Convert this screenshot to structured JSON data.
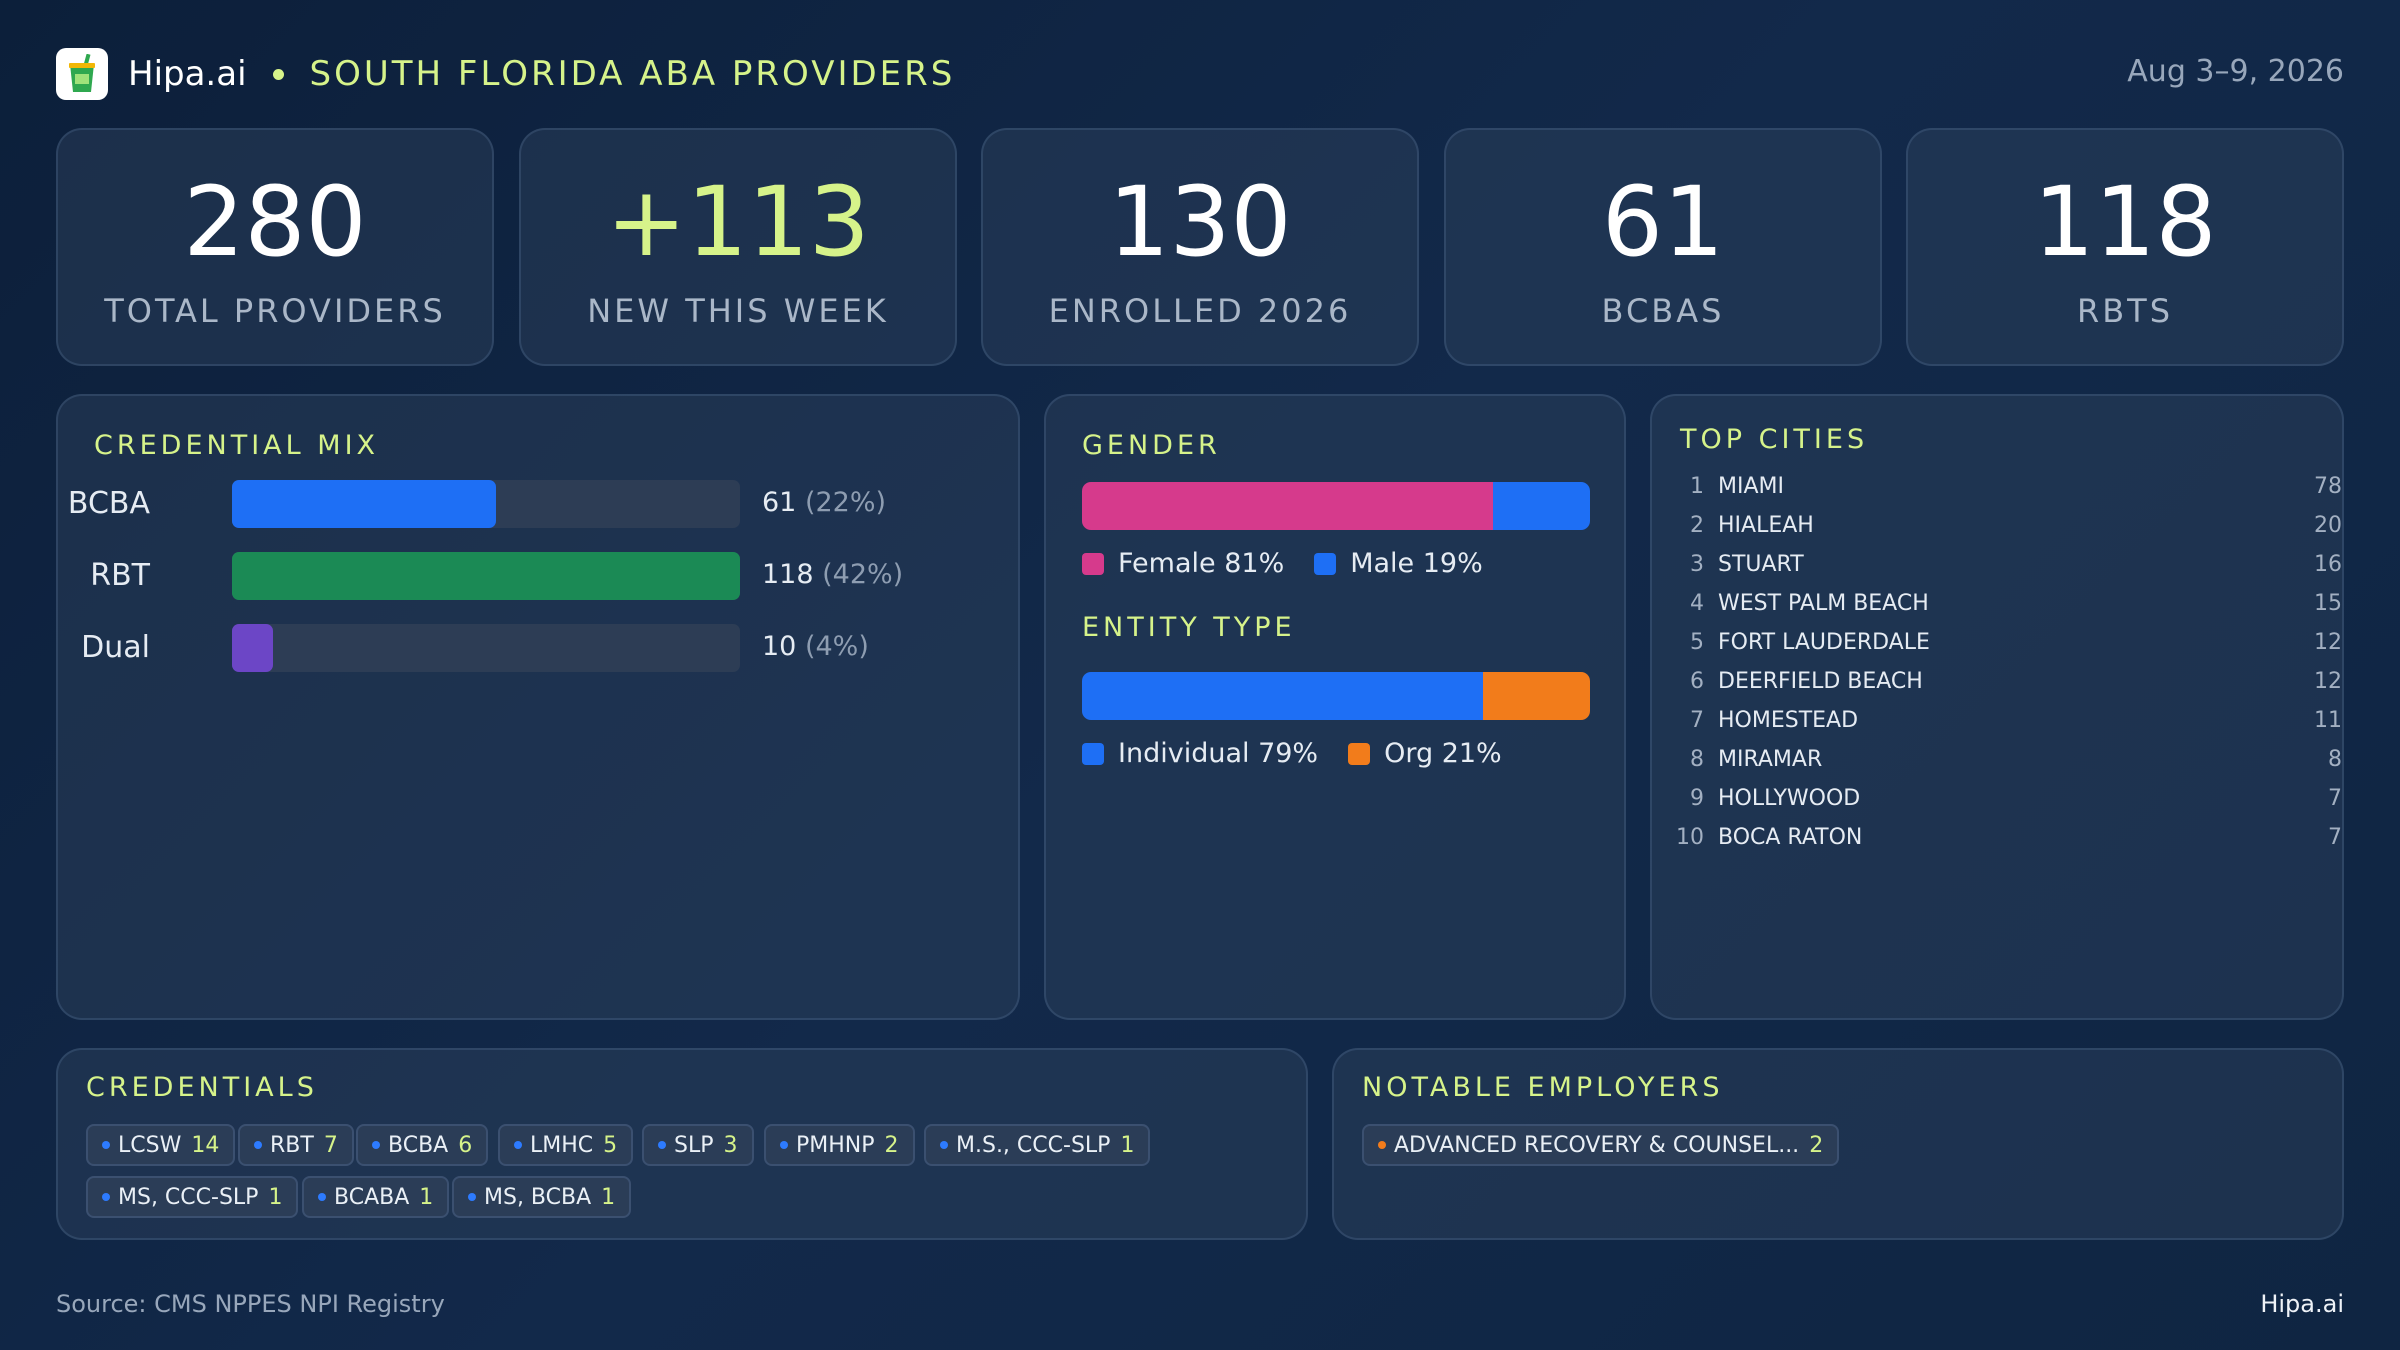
{
  "header": {
    "brand": "Hipa.ai",
    "title": "SOUTH FLORIDA ABA PROVIDERS",
    "date": "Aug 3–9, 2026",
    "logo_icon": "cup-icon"
  },
  "kpis": [
    {
      "value": "280",
      "label": "TOTAL PROVIDERS"
    },
    {
      "value": "+113",
      "label": "NEW THIS WEEK"
    },
    {
      "value": "130",
      "label": "ENROLLED 2026"
    },
    {
      "value": "61",
      "label": "BCBAS"
    },
    {
      "value": "118",
      "label": "RBTS"
    }
  ],
  "credential_mix": {
    "title": "CREDENTIAL MIX",
    "rows": [
      {
        "label": "BCBA",
        "count": "61",
        "pct": "(22%)",
        "color": "#1e6ff5",
        "fill": 0.52
      },
      {
        "label": "RBT",
        "count": "118",
        "pct": "(42%)",
        "color": "#1b8a55",
        "fill": 1.0
      },
      {
        "label": "Dual",
        "count": "10",
        "pct": "(4%)",
        "color": "#6c46c6",
        "fill": 0.08
      }
    ]
  },
  "gender": {
    "title": "GENDER",
    "segments": [
      {
        "label": "Female 81%",
        "share": 0.81,
        "color": "#d63a8c"
      },
      {
        "label": "Male 19%",
        "share": 0.19,
        "color": "#1e6ff5"
      }
    ]
  },
  "entity_type": {
    "title": "ENTITY TYPE",
    "segments": [
      {
        "label": "Individual 79%",
        "share": 0.79,
        "color": "#1e6ff5"
      },
      {
        "label": "Org 21%",
        "share": 0.21,
        "color": "#f27c1b"
      }
    ]
  },
  "top_cities": {
    "title": "TOP CITIES",
    "items": [
      {
        "rank": "1",
        "name": "MIAMI",
        "count": "78"
      },
      {
        "rank": "2",
        "name": "HIALEAH",
        "count": "20"
      },
      {
        "rank": "3",
        "name": "STUART",
        "count": "16"
      },
      {
        "rank": "4",
        "name": "WEST PALM BEACH",
        "count": "15"
      },
      {
        "rank": "5",
        "name": "FORT LAUDERDALE",
        "count": "12"
      },
      {
        "rank": "6",
        "name": "DEERFIELD BEACH",
        "count": "12"
      },
      {
        "rank": "7",
        "name": "HOMESTEAD",
        "count": "11"
      },
      {
        "rank": "8",
        "name": "MIRAMAR",
        "count": "8"
      },
      {
        "rank": "9",
        "name": "HOLLYWOOD",
        "count": "7"
      },
      {
        "rank": "10",
        "name": "BOCA RATON",
        "count": "7"
      }
    ]
  },
  "credentials": {
    "title": "CREDENTIALS",
    "chips": [
      {
        "label": "LCSW",
        "count": "14"
      },
      {
        "label": "RBT",
        "count": "7"
      },
      {
        "label": "BCBA",
        "count": "6"
      },
      {
        "label": "LMHC",
        "count": "5"
      },
      {
        "label": "SLP",
        "count": "3"
      },
      {
        "label": "PMHNP",
        "count": "2"
      },
      {
        "label": "M.S., CCC-SLP",
        "count": "1"
      },
      {
        "label": "MS, CCC-SLP",
        "count": "1"
      },
      {
        "label": "BCABA",
        "count": "1"
      },
      {
        "label": "MS, BCBA",
        "count": "1"
      }
    ]
  },
  "notable_employers": {
    "title": "NOTABLE EMPLOYERS",
    "chips": [
      {
        "label": "ADVANCED RECOVERY & COUNSEL...",
        "count": "2"
      }
    ]
  },
  "footer": {
    "source": "Source: CMS NPPES NPI Registry",
    "brand": "Hipa.ai"
  }
}
